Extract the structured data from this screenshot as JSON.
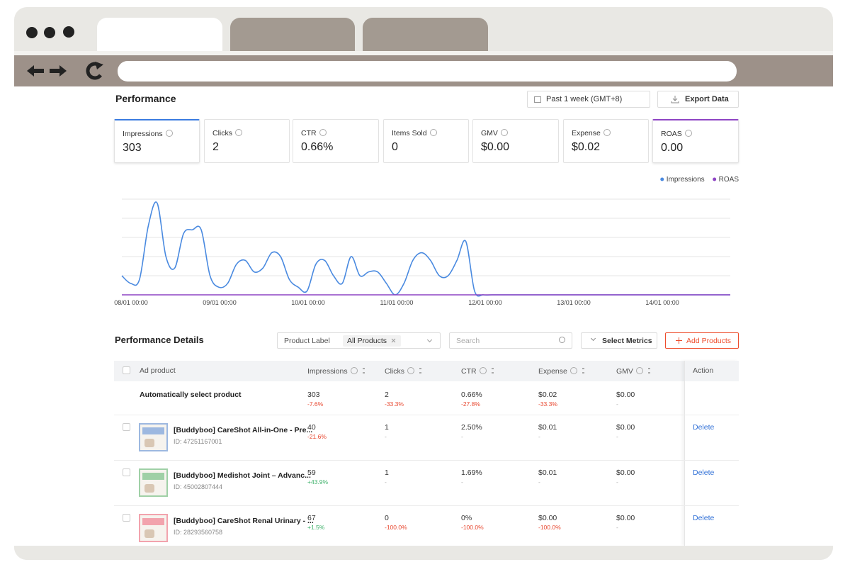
{
  "performance": {
    "title": "Performance",
    "date_range": "Past 1 week (GMT+8)",
    "export": "Export Data",
    "metrics": [
      {
        "label": "Impressions",
        "value": "303"
      },
      {
        "label": "Clicks",
        "value": "2"
      },
      {
        "label": "CTR",
        "value": "0.66%"
      },
      {
        "label": "Items Sold",
        "value": "0"
      },
      {
        "label": "GMV",
        "value": "$0.00"
      },
      {
        "label": "Expense",
        "value": "$0.02"
      },
      {
        "label": "ROAS",
        "value": "0.00"
      }
    ]
  },
  "chart": {
    "type": "line",
    "ylim": [
      0,
      25
    ],
    "grid": true,
    "legend": "top-right",
    "x_tick_labels": [
      "08/01 00:00",
      "09/01 00:00",
      "10/01 00:00",
      "11/01 00:00",
      "12/01 00:00",
      "13/01 00:00",
      "14/01 00:00"
    ],
    "series": [
      {
        "name": "Impressions",
        "color": "#4a8ae0",
        "values": [
          5,
          3,
          4,
          18,
          24,
          10,
          7,
          16,
          17,
          17,
          5,
          2,
          3,
          8,
          9,
          6,
          7,
          11,
          10,
          4,
          2,
          1,
          8,
          9,
          5,
          3,
          10,
          5,
          6,
          6,
          3,
          0,
          3,
          9,
          11,
          9,
          5,
          5,
          9,
          14,
          1,
          0,
          0,
          0,
          0,
          0,
          0,
          0,
          0,
          0,
          0,
          0,
          0,
          0,
          0,
          0,
          0,
          0,
          0,
          0,
          0,
          0,
          0,
          0,
          0,
          0,
          0,
          0,
          0,
          0
        ]
      },
      {
        "name": "ROAS",
        "color": "#8e44c4",
        "values": [
          0,
          0,
          0,
          0,
          0,
          0,
          0,
          0,
          0,
          0,
          0,
          0,
          0,
          0,
          0,
          0,
          0,
          0,
          0,
          0,
          0,
          0,
          0,
          0,
          0,
          0,
          0,
          0,
          0,
          0,
          0,
          0,
          0,
          0,
          0,
          0,
          0,
          0,
          0,
          0,
          0,
          0,
          0,
          0,
          0,
          0,
          0,
          0,
          0,
          0,
          0,
          0,
          0,
          0,
          0,
          0,
          0,
          0,
          0,
          0,
          0,
          0,
          0,
          0,
          0,
          0,
          0,
          0,
          0,
          0
        ]
      }
    ]
  },
  "details": {
    "title": "Performance Details",
    "filter_label": "Product Label",
    "filter_value": "All Products",
    "search": "Search",
    "select_metrics": "Select Metrics",
    "add_products": "Add Products",
    "table": {
      "columns": [
        "Ad product",
        "Impressions",
        "Clicks",
        "CTR",
        "Expense",
        "GMV",
        "Action"
      ],
      "rows": [
        {
          "name": "Automatically select product",
          "cells": [
            {
              "value": "303",
              "change": "-7.6%"
            },
            {
              "value": "2",
              "change": "-33.3%"
            },
            {
              "value": "0.66%",
              "change": "-27.8%"
            },
            {
              "value": "$0.02",
              "change": "-33.3%"
            },
            {
              "value": "$0.00",
              "change": "-"
            }
          ]
        },
        {
          "name": "[Buddyboo] CareShot All-in-One - Pre...",
          "id": "ID: 47251167001",
          "action": "Delete",
          "cells": [
            {
              "value": "40",
              "change": "-21.6%"
            },
            {
              "value": "1",
              "change": "-"
            },
            {
              "value": "2.50%",
              "change": "-"
            },
            {
              "value": "$0.01",
              "change": "-"
            },
            {
              "value": "$0.00",
              "change": "-"
            }
          ]
        },
        {
          "name": "[Buddyboo] Medishot Joint – Advanc...",
          "id": "ID: 45002807444",
          "action": "Delete",
          "cells": [
            {
              "value": "59",
              "change": "+43.9%"
            },
            {
              "value": "1",
              "change": "-"
            },
            {
              "value": "1.69%",
              "change": "-"
            },
            {
              "value": "$0.01",
              "change": "-"
            },
            {
              "value": "$0.00",
              "change": "-"
            }
          ]
        },
        {
          "name": "[Buddyboo] CareShot Renal Urinary - ...",
          "id": "ID: 28293560758",
          "action": "Delete",
          "cells": [
            {
              "value": "67",
              "change": "+1.5%"
            },
            {
              "value": "0",
              "change": "-100.0%"
            },
            {
              "value": "0%",
              "change": "-100.0%"
            },
            {
              "value": "$0.00",
              "change": "-100.0%"
            },
            {
              "value": "$0.00",
              "change": "-"
            }
          ]
        }
      ]
    }
  }
}
